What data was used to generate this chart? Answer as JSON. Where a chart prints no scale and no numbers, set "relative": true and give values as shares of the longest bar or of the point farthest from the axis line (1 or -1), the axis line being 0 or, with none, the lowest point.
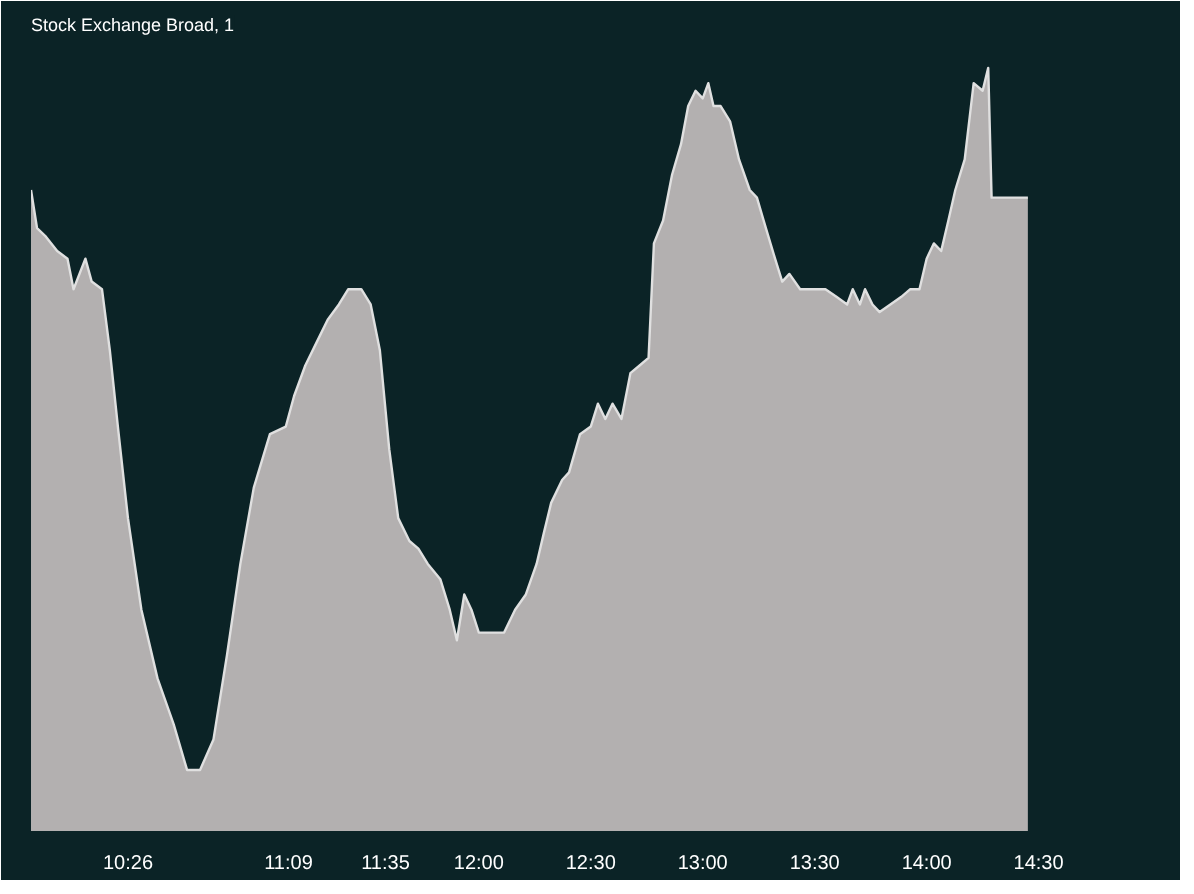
{
  "chart_data": {
    "type": "area",
    "title": "Stock Exchange Broad, 1",
    "relative": true,
    "x": [
      10.0,
      10.027,
      10.063,
      10.117,
      10.163,
      10.19,
      10.243,
      10.271,
      10.317,
      10.352,
      10.388,
      10.433,
      10.493,
      10.565,
      10.637,
      10.697,
      10.755,
      10.815,
      10.875,
      10.935,
      10.995,
      11.067,
      11.138,
      11.175,
      11.225,
      11.275,
      11.325,
      11.375,
      11.417,
      11.475,
      11.517,
      11.558,
      11.6,
      11.64,
      11.69,
      11.73,
      11.772,
      11.828,
      11.87,
      11.902,
      11.935,
      11.967,
      12.0,
      12.048,
      12.113,
      12.162,
      12.21,
      12.258,
      12.29,
      12.323,
      12.372,
      12.403,
      12.452,
      12.5,
      12.532,
      12.565,
      12.597,
      12.637,
      12.677,
      12.718,
      12.758,
      12.782,
      12.823,
      12.863,
      12.903,
      12.935,
      12.968,
      13.0,
      13.025,
      13.048,
      13.08,
      13.122,
      13.162,
      13.21,
      13.242,
      13.282,
      13.323,
      13.355,
      13.387,
      13.435,
      13.483,
      13.548,
      13.597,
      13.645,
      13.67,
      13.702,
      13.725,
      13.758,
      13.79,
      13.838,
      13.887,
      13.927,
      13.968,
      14.0,
      14.032,
      14.065,
      14.097,
      14.128,
      14.17,
      14.21,
      14.25,
      14.275,
      14.29,
      14.452
    ],
    "series": [
      {
        "color": "#b3b0b0",
        "values": [
          0.84,
          0.79,
          0.78,
          0.76,
          0.75,
          0.71,
          0.75,
          0.72,
          0.71,
          0.63,
          0.53,
          0.41,
          0.29,
          0.2,
          0.14,
          0.08,
          0.08,
          0.12,
          0.23,
          0.35,
          0.45,
          0.52,
          0.53,
          0.57,
          0.61,
          0.64,
          0.67,
          0.69,
          0.71,
          0.71,
          0.69,
          0.63,
          0.5,
          0.41,
          0.38,
          0.37,
          0.35,
          0.33,
          0.29,
          0.25,
          0.31,
          0.29,
          0.26,
          0.26,
          0.26,
          0.29,
          0.31,
          0.35,
          0.39,
          0.43,
          0.46,
          0.47,
          0.52,
          0.53,
          0.56,
          0.54,
          0.56,
          0.54,
          0.6,
          0.61,
          0.62,
          0.77,
          0.8,
          0.86,
          0.9,
          0.95,
          0.97,
          0.96,
          0.98,
          0.95,
          0.95,
          0.93,
          0.88,
          0.84,
          0.83,
          0.79,
          0.75,
          0.72,
          0.73,
          0.71,
          0.71,
          0.71,
          0.7,
          0.69,
          0.71,
          0.69,
          0.71,
          0.69,
          0.68,
          0.69,
          0.7,
          0.71,
          0.71,
          0.75,
          0.77,
          0.76,
          0.8,
          0.84,
          0.88,
          0.98,
          0.97,
          1.0,
          0.83,
          0.83
        ]
      }
    ],
    "xlim": [
      10.0,
      14.6
    ],
    "xticks": [
      {
        "value": 10.4333,
        "label": "10:26"
      },
      {
        "value": 11.15,
        "label": "11:09"
      },
      {
        "value": 11.5833,
        "label": "11:35"
      },
      {
        "value": 12,
        "label": "12:00"
      },
      {
        "value": 12.5,
        "label": "12:30"
      },
      {
        "value": 13,
        "label": "13:00"
      },
      {
        "value": 13.5,
        "label": "13:30"
      },
      {
        "value": 14,
        "label": "14:00"
      },
      {
        "value": 14.5,
        "label": "14:30"
      }
    ],
    "tick_labels": "x",
    "grid": false
  }
}
